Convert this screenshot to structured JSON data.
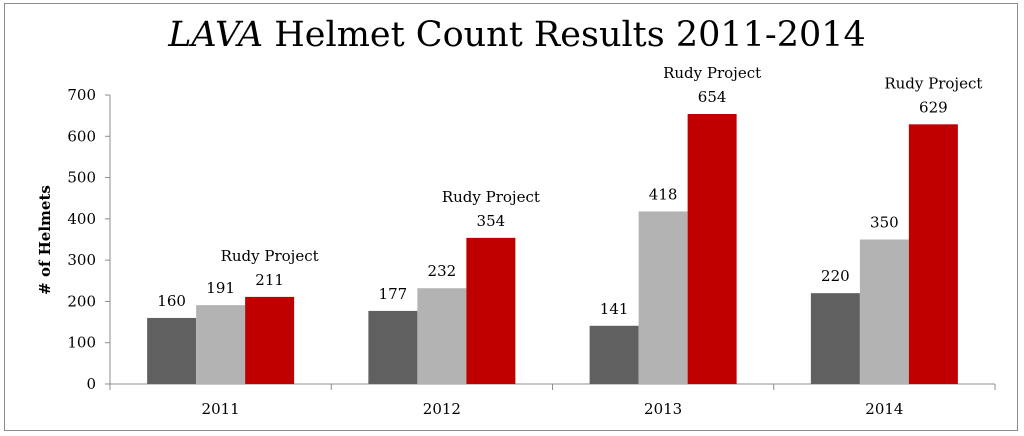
{
  "chart_data": {
    "type": "bar",
    "title_italic": "LAVA",
    "title_rest": " Helmet Count Results 2011-2014",
    "xlabel": "",
    "ylabel": "# of Helmets",
    "ylim": [
      0,
      700
    ],
    "yticks": [
      0,
      100,
      200,
      300,
      400,
      500,
      600,
      700
    ],
    "categories": [
      "2011",
      "2012",
      "2013",
      "2014"
    ],
    "grid": false,
    "legend": "none",
    "series": [
      {
        "color": "#606060",
        "values": [
          160,
          177,
          141,
          220
        ]
      },
      {
        "color": "#b3b3b3",
        "values": [
          191,
          232,
          418,
          350
        ]
      },
      {
        "name": "Rudy Project",
        "color": "#c00000",
        "values": [
          211,
          354,
          654,
          629
        ]
      }
    ]
  }
}
